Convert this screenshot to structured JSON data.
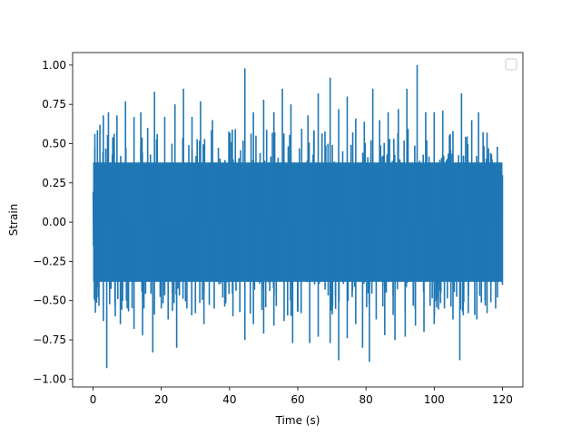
{
  "chart_data": {
    "type": "line",
    "title": "",
    "xlabel": "Time (s)",
    "ylabel": "Strain",
    "xlim": [
      -6,
      126
    ],
    "ylim": [
      -1.05,
      1.08
    ],
    "xticks": [
      0,
      20,
      40,
      60,
      80,
      100,
      120
    ],
    "xtick_labels": [
      "0",
      "20",
      "40",
      "60",
      "80",
      "100",
      "120"
    ],
    "yticks": [
      -1.0,
      -0.75,
      -0.5,
      -0.25,
      0.0,
      0.25,
      0.5,
      0.75,
      1.0
    ],
    "ytick_labels": [
      "−1.00",
      "−0.75",
      "−0.50",
      "−0.25",
      "0.00",
      "0.25",
      "0.50",
      "0.75",
      "1.00"
    ],
    "grid": false,
    "legend": "top-right",
    "series": [
      {
        "color": "#1f77b4",
        "x_range": [
          0,
          120
        ],
        "peaks_max": [
          [
            0.5,
            0.47
          ],
          [
            2.0,
            0.62
          ],
          [
            3.0,
            0.68
          ],
          [
            4.5,
            0.7
          ],
          [
            7.0,
            0.68
          ],
          [
            9.5,
            0.77
          ],
          [
            12.0,
            0.67
          ],
          [
            14.0,
            0.7
          ],
          [
            16.0,
            0.6
          ],
          [
            18.0,
            0.83
          ],
          [
            21.0,
            0.67
          ],
          [
            24.0,
            0.75
          ],
          [
            26.5,
            0.85
          ],
          [
            29.0,
            0.67
          ],
          [
            31.5,
            0.77
          ],
          [
            35.0,
            0.65
          ],
          [
            40.0,
            0.46
          ],
          [
            44.5,
            0.98
          ],
          [
            47.0,
            0.7
          ],
          [
            50.0,
            0.78
          ],
          [
            53.0,
            0.7
          ],
          [
            55.5,
            0.85
          ],
          [
            58.0,
            0.75
          ],
          [
            60.5,
            0.47
          ],
          [
            63.0,
            0.68
          ],
          [
            66.0,
            0.82
          ],
          [
            69.5,
            0.92
          ],
          [
            72.0,
            0.72
          ],
          [
            74.5,
            0.8
          ],
          [
            77.0,
            0.66
          ],
          [
            79.5,
            0.64
          ],
          [
            82.0,
            0.85
          ],
          [
            84.0,
            0.65
          ],
          [
            86.5,
            0.7
          ],
          [
            89.5,
            0.72
          ],
          [
            92.0,
            0.85
          ],
          [
            95.0,
            1.0
          ],
          [
            97.5,
            0.7
          ],
          [
            100.0,
            0.7
          ],
          [
            102.5,
            0.71
          ],
          [
            105.5,
            0.58
          ],
          [
            108.0,
            0.82
          ],
          [
            111.0,
            0.65
          ],
          [
            113.0,
            0.7
          ],
          [
            115.5,
            0.57
          ],
          [
            118.5,
            0.48
          ],
          [
            120.0,
            0.3
          ]
        ],
        "peaks_min": [
          [
            0.5,
            -0.5
          ],
          [
            1.5,
            -0.48
          ],
          [
            3.0,
            -0.63
          ],
          [
            4.0,
            -0.93
          ],
          [
            6.5,
            -0.6
          ],
          [
            8.0,
            -0.65
          ],
          [
            10.0,
            -0.55
          ],
          [
            12.0,
            -0.68
          ],
          [
            14.5,
            -0.72
          ],
          [
            17.5,
            -0.83
          ],
          [
            20.0,
            -0.55
          ],
          [
            22.0,
            -0.62
          ],
          [
            24.5,
            -0.8
          ],
          [
            27.5,
            -0.55
          ],
          [
            30.0,
            -0.58
          ],
          [
            32.5,
            -0.65
          ],
          [
            35.5,
            -0.55
          ],
          [
            38.0,
            -0.48
          ],
          [
            41.0,
            -0.6
          ],
          [
            44.5,
            -0.75
          ],
          [
            47.0,
            -0.65
          ],
          [
            50.0,
            -0.71
          ],
          [
            53.0,
            -0.66
          ],
          [
            56.0,
            -0.63
          ],
          [
            58.5,
            -0.77
          ],
          [
            61.0,
            -0.58
          ],
          [
            63.5,
            -0.77
          ],
          [
            66.0,
            -0.73
          ],
          [
            69.5,
            -0.77
          ],
          [
            72.0,
            -0.88
          ],
          [
            74.5,
            -0.74
          ],
          [
            77.0,
            -0.65
          ],
          [
            79.0,
            -0.8
          ],
          [
            81.0,
            -0.89
          ],
          [
            83.0,
            -0.62
          ],
          [
            85.5,
            -0.72
          ],
          [
            88.5,
            -0.75
          ],
          [
            91.5,
            -0.73
          ],
          [
            94.5,
            -0.66
          ],
          [
            97.0,
            -0.7
          ],
          [
            100.0,
            -0.65
          ],
          [
            103.0,
            -0.55
          ],
          [
            105.5,
            -0.62
          ],
          [
            107.5,
            -0.88
          ],
          [
            110.0,
            -0.58
          ],
          [
            112.5,
            -0.62
          ],
          [
            115.5,
            -0.58
          ],
          [
            118.0,
            -0.55
          ],
          [
            120.0,
            -0.4
          ]
        ]
      }
    ]
  }
}
